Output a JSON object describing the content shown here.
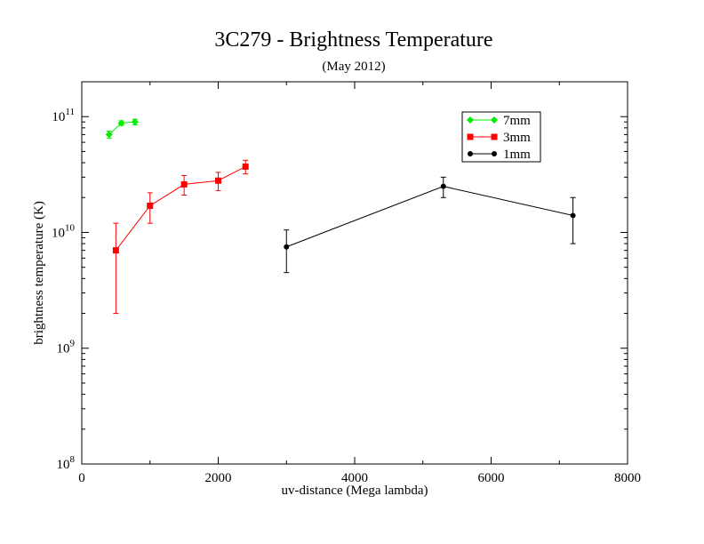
{
  "chart_data": {
    "type": "scatter",
    "title": "3C279 - Brightness Temperature",
    "subtitle": "(May 2012)",
    "xlabel": "uv-distance (Mega lambda)",
    "ylabel": "brightness temperature (K)",
    "xlim": [
      0,
      8000
    ],
    "ylim": [
      100000000,
      200000000000
    ],
    "yscale": "log",
    "x_ticks": [
      0,
      2000,
      4000,
      6000,
      8000
    ],
    "x_tick_labels": [
      "0",
      "2000",
      "4000",
      "6000",
      "8000"
    ],
    "y_ticks": [
      100000000,
      1000000000,
      10000000000,
      100000000000
    ],
    "y_tick_labels": [
      {
        "base": "10",
        "exp": "8"
      },
      {
        "base": "10",
        "exp": "9"
      },
      {
        "base": "10",
        "exp": "10"
      },
      {
        "base": "10",
        "exp": "11"
      }
    ],
    "grid": false,
    "legend_position": "top-right",
    "series": [
      {
        "name": "7mm",
        "color": "#00ee00",
        "marker": "diamond",
        "x": [
          400,
          580,
          780
        ],
        "y": [
          70000000000,
          88000000000,
          90000000000
        ],
        "yerr_low": [
          65000000000,
          84000000000,
          85000000000
        ],
        "yerr_high": [
          75000000000,
          92000000000,
          95000000000
        ]
      },
      {
        "name": "3mm",
        "color": "#ff0000",
        "marker": "square",
        "x": [
          500,
          1000,
          1500,
          2000,
          2400
        ],
        "y": [
          7000000000,
          17000000000,
          26000000000,
          28000000000,
          37000000000
        ],
        "yerr_low": [
          2000000000,
          12000000000,
          21000000000,
          23000000000,
          32000000000
        ],
        "yerr_high": [
          12000000000,
          22000000000,
          31000000000,
          33000000000,
          42000000000
        ]
      },
      {
        "name": "1mm",
        "color": "#000000",
        "marker": "circle",
        "x": [
          3000,
          5300,
          7200
        ],
        "y": [
          7500000000,
          25000000000,
          14000000000
        ],
        "yerr_low": [
          4500000000,
          20000000000,
          8000000000
        ],
        "yerr_high": [
          10500000000,
          30000000000,
          20000000000
        ]
      }
    ]
  }
}
